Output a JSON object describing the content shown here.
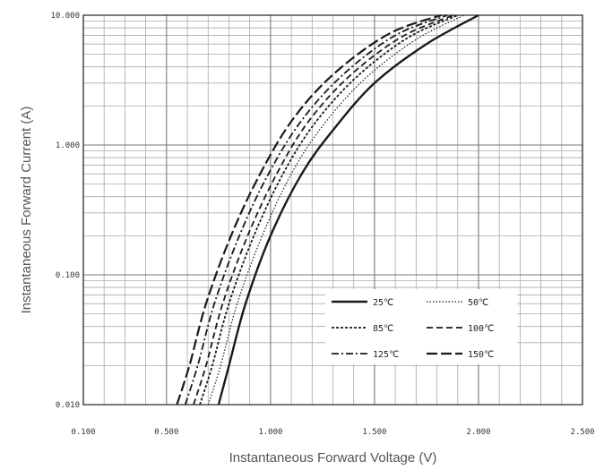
{
  "chart_data": {
    "type": "line",
    "title": "",
    "xlabel": "Instantaneous Forward Voltage (V)",
    "ylabel": "Instantaneous Forward Current (A)",
    "xlim": [
      0.1,
      2.5
    ],
    "ylim": [
      0.01,
      10.0
    ],
    "y_scale": "log",
    "grid": true,
    "legend_position": "bottom-right",
    "x_ticks": [
      "0.100",
      "0.500",
      "1.000",
      "1.500",
      "2.000",
      "2.500"
    ],
    "x_tick_values": [
      0.1,
      0.5,
      1.0,
      1.5,
      2.0,
      2.5
    ],
    "y_ticks": [
      "0.010",
      "0.100",
      "1.000",
      "10.000"
    ],
    "y_tick_values": [
      0.01,
      0.1,
      1.0,
      10.0
    ],
    "series": [
      {
        "name": "25℃",
        "style": "solid",
        "width": 2.4,
        "x": [
          0.75,
          0.8,
          0.88,
          1.0,
          1.15,
          1.3,
          1.5,
          1.75,
          2.0
        ],
        "y": [
          0.01,
          0.02,
          0.06,
          0.2,
          0.6,
          1.3,
          3.0,
          6.0,
          10.0
        ]
      },
      {
        "name": "50℃",
        "style": "dotted",
        "width": 1.2,
        "x": [
          0.7,
          0.76,
          0.84,
          0.96,
          1.1,
          1.25,
          1.45,
          1.7,
          1.93
        ],
        "y": [
          0.01,
          0.02,
          0.06,
          0.2,
          0.6,
          1.4,
          3.2,
          6.5,
          10.0
        ]
      },
      {
        "name": "85℃",
        "style": "short-dash",
        "width": 1.8,
        "x": [
          0.66,
          0.72,
          0.8,
          0.92,
          1.06,
          1.21,
          1.41,
          1.66,
          1.9
        ],
        "y": [
          0.01,
          0.02,
          0.06,
          0.2,
          0.6,
          1.45,
          3.3,
          6.7,
          10.0
        ]
      },
      {
        "name": "100℃",
        "style": "dash",
        "width": 1.8,
        "x": [
          0.63,
          0.69,
          0.77,
          0.89,
          1.03,
          1.18,
          1.38,
          1.63,
          1.88
        ],
        "y": [
          0.01,
          0.02,
          0.06,
          0.2,
          0.6,
          1.5,
          3.4,
          6.8,
          10.0
        ]
      },
      {
        "name": "125℃",
        "style": "dash-dot",
        "width": 1.8,
        "x": [
          0.59,
          0.65,
          0.73,
          0.85,
          0.99,
          1.15,
          1.35,
          1.6,
          1.85
        ],
        "y": [
          0.01,
          0.02,
          0.06,
          0.2,
          0.6,
          1.55,
          3.5,
          7.0,
          10.0
        ]
      },
      {
        "name": "150℃",
        "style": "long-dash",
        "width": 2.2,
        "x": [
          0.55,
          0.61,
          0.69,
          0.81,
          0.95,
          1.11,
          1.31,
          1.57,
          1.82
        ],
        "y": [
          0.01,
          0.02,
          0.06,
          0.2,
          0.6,
          1.6,
          3.6,
          7.2,
          10.0
        ]
      }
    ]
  }
}
